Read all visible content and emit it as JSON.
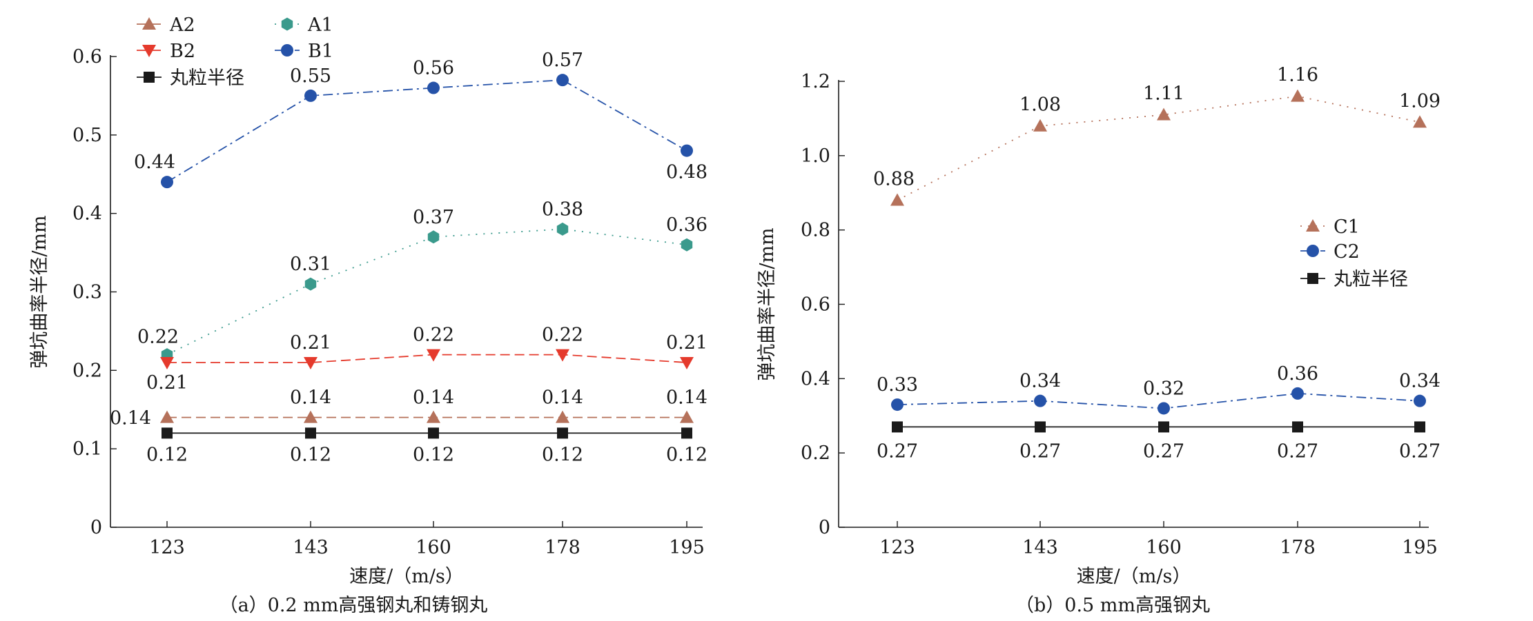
{
  "chart_data": [
    {
      "type": "line",
      "caption": "（a）0.2 mm高强钢丸和铸钢丸",
      "xlabel": "速度/（m/s）",
      "ylabel": "弹坑曲率半径/mm",
      "categories": [
        "123",
        "143",
        "160",
        "178",
        "195"
      ],
      "ylim": [
        0,
        0.6
      ],
      "yticks": [
        "0",
        "0.1",
        "0.2",
        "0.3",
        "0.4",
        "0.5",
        "0.6"
      ],
      "legend_position": "top-left",
      "grid": false,
      "series": [
        {
          "name": "A2",
          "values": [
            0.14,
            0.14,
            0.14,
            0.14,
            0.14
          ],
          "labels": [
            "0.14",
            "0.14",
            "0.14",
            "0.14",
            "0.14"
          ],
          "color": "#b5715a",
          "marker": "triangle-up",
          "dash": "dashed"
        },
        {
          "name": "A1",
          "values": [
            0.22,
            0.31,
            0.37,
            0.38,
            0.36
          ],
          "labels": [
            "0.22",
            "0.31",
            "0.37",
            "0.38",
            "0.36"
          ],
          "color": "#3a9a8c",
          "marker": "hexagon",
          "dash": "dotted"
        },
        {
          "name": "B2",
          "values": [
            0.21,
            0.21,
            0.22,
            0.22,
            0.21
          ],
          "labels": [
            "0.21",
            "0.21",
            "0.22",
            "0.22",
            "0.21"
          ],
          "color": "#e53a2c",
          "marker": "triangle-down",
          "dash": "dashed"
        },
        {
          "name": "B1",
          "values": [
            0.44,
            0.55,
            0.56,
            0.57,
            0.48
          ],
          "labels": [
            "0.44",
            "0.55",
            "0.56",
            "0.57",
            "0.48"
          ],
          "color": "#2552a8",
          "marker": "circle",
          "dash": "dashdot"
        },
        {
          "name": "丸粒半径",
          "values": [
            0.12,
            0.12,
            0.12,
            0.12,
            0.12
          ],
          "labels": [
            "0.12",
            "0.12",
            "0.12",
            "0.12",
            "0.12"
          ],
          "color": "#1a1a1a",
          "marker": "square",
          "dash": "solid"
        }
      ]
    },
    {
      "type": "line",
      "caption": "（b）0.5 mm高强钢丸",
      "xlabel": "速度/（m/s）",
      "ylabel": "弹坑曲率半径/mm",
      "categories": [
        "123",
        "143",
        "160",
        "178",
        "195"
      ],
      "ylim": [
        0,
        1.2
      ],
      "yticks": [
        "0",
        "0.2",
        "0.4",
        "0.6",
        "0.8",
        "1.0",
        "1.2"
      ],
      "legend_position": "right",
      "grid": false,
      "series": [
        {
          "name": "C1",
          "values": [
            0.88,
            1.08,
            1.11,
            1.16,
            1.09
          ],
          "labels": [
            "0.88",
            "1.08",
            "1.11",
            "1.16",
            "1.09"
          ],
          "color": "#b5715a",
          "marker": "triangle-up",
          "dash": "dotted"
        },
        {
          "name": "C2",
          "values": [
            0.33,
            0.34,
            0.32,
            0.36,
            0.34
          ],
          "labels": [
            "0.33",
            "0.34",
            "0.32",
            "0.36",
            "0.34"
          ],
          "color": "#2552a8",
          "marker": "circle",
          "dash": "dashdot"
        },
        {
          "name": "丸粒半径",
          "values": [
            0.27,
            0.27,
            0.27,
            0.27,
            0.27
          ],
          "labels": [
            "0.27",
            "0.27",
            "0.27",
            "0.27",
            "0.27"
          ],
          "color": "#1a1a1a",
          "marker": "square",
          "dash": "solid"
        }
      ]
    }
  ]
}
